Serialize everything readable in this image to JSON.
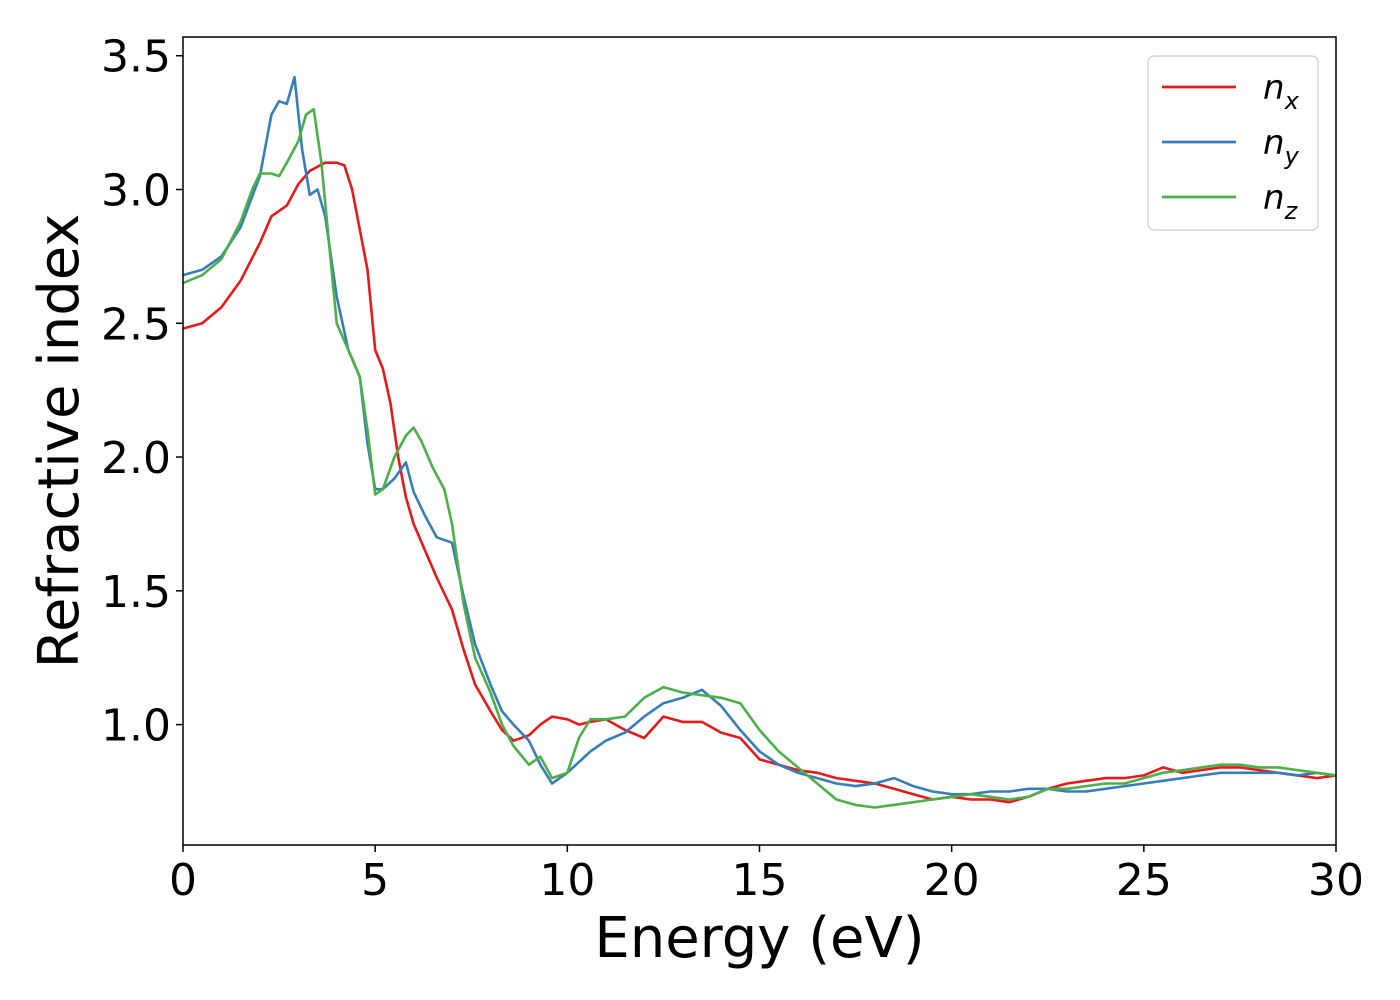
{
  "chart_data": {
    "type": "line",
    "title": "",
    "xlabel": "Energy (eV)",
    "ylabel": "Refractive index",
    "xlim": [
      0,
      30
    ],
    "ylim": [
      0.55,
      3.57
    ],
    "xticks": [
      0,
      5,
      10,
      15,
      20,
      25,
      30
    ],
    "xtick_labels": [
      "0",
      "5",
      "10",
      "15",
      "20",
      "25",
      "30"
    ],
    "yticks": [
      1.0,
      1.5,
      2.0,
      2.5,
      3.0,
      3.5
    ],
    "ytick_labels": [
      "1.0",
      "1.5",
      "2.0",
      "2.5",
      "3.0",
      "3.5"
    ],
    "grid": false,
    "legend_position": "top-right",
    "series": [
      {
        "name": "n_x",
        "label_base": "n",
        "label_sub": "x",
        "color": "#e41a1c",
        "x": [
          0,
          0.5,
          1.0,
          1.5,
          2.0,
          2.3,
          2.7,
          3.0,
          3.3,
          3.7,
          4.0,
          4.2,
          4.4,
          4.6,
          4.8,
          5.0,
          5.2,
          5.4,
          5.6,
          5.8,
          6.0,
          6.3,
          6.6,
          7.0,
          7.3,
          7.6,
          8.0,
          8.3,
          8.6,
          9.0,
          9.3,
          9.6,
          10.0,
          10.3,
          10.6,
          11.0,
          11.5,
          12.0,
          12.5,
          13.0,
          13.5,
          14.0,
          14.5,
          15.0,
          15.5,
          16.0,
          16.5,
          17.0,
          17.5,
          18.0,
          18.5,
          19.0,
          19.5,
          20.0,
          20.5,
          21.0,
          21.5,
          22.0,
          22.5,
          23.0,
          23.5,
          24.0,
          24.5,
          25.0,
          25.5,
          26.0,
          26.5,
          27.0,
          27.5,
          28.0,
          28.5,
          29.0,
          29.5,
          30.0
        ],
        "values": [
          2.48,
          2.5,
          2.56,
          2.66,
          2.8,
          2.9,
          2.94,
          3.02,
          3.07,
          3.1,
          3.1,
          3.09,
          3.0,
          2.85,
          2.7,
          2.4,
          2.33,
          2.2,
          2.0,
          1.85,
          1.75,
          1.65,
          1.55,
          1.43,
          1.28,
          1.15,
          1.05,
          0.98,
          0.94,
          0.96,
          1.0,
          1.03,
          1.02,
          1.0,
          1.01,
          1.02,
          0.98,
          0.95,
          1.03,
          1.01,
          1.01,
          0.97,
          0.95,
          0.87,
          0.85,
          0.83,
          0.82,
          0.8,
          0.79,
          0.78,
          0.76,
          0.74,
          0.72,
          0.73,
          0.72,
          0.72,
          0.71,
          0.73,
          0.76,
          0.78,
          0.79,
          0.8,
          0.8,
          0.81,
          0.84,
          0.82,
          0.83,
          0.84,
          0.84,
          0.83,
          0.82,
          0.81,
          0.8,
          0.81
        ]
      },
      {
        "name": "n_y",
        "label_base": "n",
        "label_sub": "y",
        "color": "#377eb8",
        "x": [
          0,
          0.5,
          1.0,
          1.5,
          2.0,
          2.3,
          2.5,
          2.7,
          2.9,
          3.1,
          3.3,
          3.5,
          3.7,
          4.0,
          4.3,
          4.6,
          4.8,
          5.0,
          5.2,
          5.5,
          5.8,
          6.0,
          6.3,
          6.6,
          7.0,
          7.3,
          7.6,
          8.0,
          8.3,
          8.6,
          9.0,
          9.3,
          9.6,
          10.0,
          10.3,
          10.6,
          11.0,
          11.5,
          12.0,
          12.5,
          13.0,
          13.5,
          14.0,
          14.5,
          15.0,
          15.5,
          16.0,
          16.5,
          17.0,
          17.5,
          18.0,
          18.5,
          19.0,
          19.5,
          20.0,
          20.5,
          21.0,
          21.5,
          22.0,
          22.5,
          23.0,
          23.5,
          24.0,
          24.5,
          25.0,
          25.5,
          26.0,
          26.5,
          27.0,
          27.5,
          28.0,
          28.5,
          29.0,
          29.5,
          30.0
        ],
        "values": [
          2.68,
          2.7,
          2.75,
          2.86,
          3.05,
          3.28,
          3.33,
          3.32,
          3.42,
          3.15,
          2.98,
          3.0,
          2.9,
          2.6,
          2.4,
          2.3,
          2.05,
          1.88,
          1.88,
          1.92,
          1.98,
          1.87,
          1.78,
          1.7,
          1.68,
          1.48,
          1.3,
          1.15,
          1.05,
          1.0,
          0.94,
          0.85,
          0.78,
          0.82,
          0.86,
          0.9,
          0.94,
          0.97,
          1.03,
          1.08,
          1.1,
          1.13,
          1.07,
          0.98,
          0.9,
          0.85,
          0.82,
          0.8,
          0.78,
          0.77,
          0.78,
          0.8,
          0.77,
          0.75,
          0.74,
          0.74,
          0.75,
          0.75,
          0.76,
          0.76,
          0.75,
          0.75,
          0.76,
          0.77,
          0.78,
          0.79,
          0.8,
          0.81,
          0.82,
          0.82,
          0.82,
          0.82,
          0.81,
          0.82,
          0.81
        ]
      },
      {
        "name": "n_z",
        "label_base": "n",
        "label_sub": "z",
        "color": "#4daf4a",
        "x": [
          0,
          0.5,
          1.0,
          1.5,
          1.8,
          2.0,
          2.3,
          2.5,
          2.7,
          3.0,
          3.2,
          3.4,
          3.6,
          3.8,
          4.0,
          4.3,
          4.6,
          4.8,
          5.0,
          5.2,
          5.5,
          5.8,
          6.0,
          6.2,
          6.5,
          6.8,
          7.0,
          7.3,
          7.6,
          8.0,
          8.3,
          8.6,
          9.0,
          9.3,
          9.6,
          10.0,
          10.3,
          10.6,
          11.0,
          11.5,
          12.0,
          12.5,
          13.0,
          13.5,
          14.0,
          14.5,
          15.0,
          15.5,
          16.0,
          16.5,
          17.0,
          17.5,
          18.0,
          18.5,
          19.0,
          19.5,
          20.0,
          20.5,
          21.0,
          21.5,
          22.0,
          22.5,
          23.0,
          23.5,
          24.0,
          24.5,
          25.0,
          25.5,
          26.0,
          26.5,
          27.0,
          27.5,
          28.0,
          28.5,
          29.0,
          29.5,
          30.0
        ],
        "values": [
          2.65,
          2.68,
          2.74,
          2.88,
          3.0,
          3.06,
          3.06,
          3.05,
          3.1,
          3.18,
          3.28,
          3.3,
          3.1,
          2.8,
          2.5,
          2.4,
          2.3,
          2.1,
          1.86,
          1.88,
          2.0,
          2.08,
          2.11,
          2.06,
          1.96,
          1.88,
          1.75,
          1.45,
          1.25,
          1.12,
          1.0,
          0.92,
          0.85,
          0.88,
          0.8,
          0.82,
          0.95,
          1.02,
          1.02,
          1.03,
          1.1,
          1.14,
          1.12,
          1.11,
          1.1,
          1.08,
          0.98,
          0.9,
          0.84,
          0.78,
          0.72,
          0.7,
          0.69,
          0.7,
          0.71,
          0.72,
          0.73,
          0.74,
          0.73,
          0.72,
          0.73,
          0.76,
          0.76,
          0.77,
          0.78,
          0.78,
          0.8,
          0.82,
          0.83,
          0.84,
          0.85,
          0.85,
          0.84,
          0.84,
          0.83,
          0.82,
          0.81
        ]
      }
    ]
  }
}
